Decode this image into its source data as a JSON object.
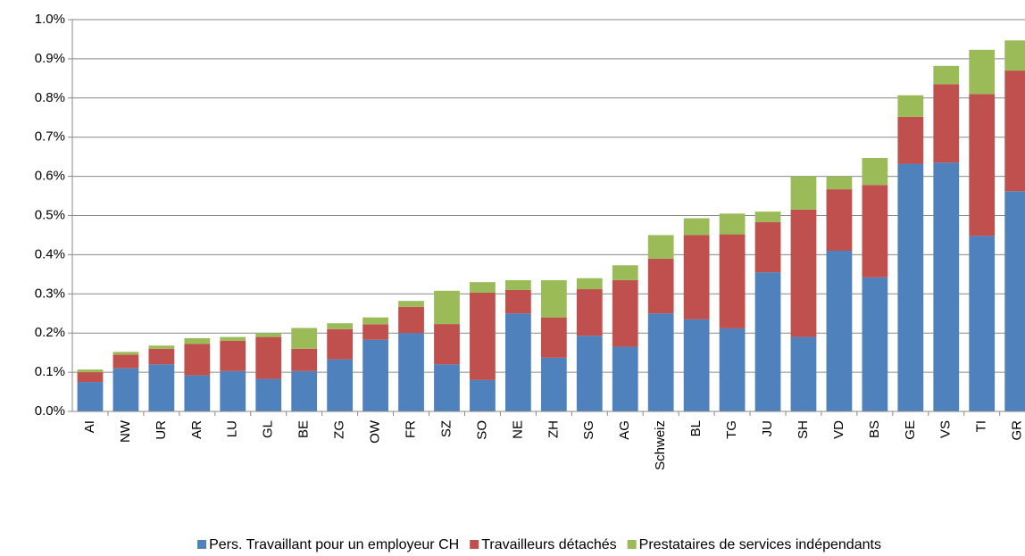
{
  "chart_data": {
    "type": "stacked-bar",
    "categories": [
      "AI",
      "NW",
      "UR",
      "AR",
      "LU",
      "GL",
      "BE",
      "ZG",
      "OW",
      "FR",
      "SZ",
      "SO",
      "NE",
      "ZH",
      "SG",
      "AG",
      "Schweiz",
      "BL",
      "TG",
      "JU",
      "SH",
      "VD",
      "BS",
      "GE",
      "VS",
      "TI",
      "GR"
    ],
    "series": [
      {
        "name": "Pers. Travaillant pour un employeur CH",
        "color": "#4f81bd",
        "values": [
          0.075,
          0.11,
          0.12,
          0.092,
          0.103,
          0.083,
          0.103,
          0.133,
          0.183,
          0.2,
          0.12,
          0.08,
          0.25,
          0.137,
          0.193,
          0.165,
          0.25,
          0.235,
          0.212,
          0.355,
          0.19,
          0.41,
          0.342,
          0.632,
          0.635,
          0.448,
          0.562
        ]
      },
      {
        "name": "Travailleurs détachés",
        "color": "#c0504d",
        "values": [
          0.025,
          0.035,
          0.04,
          0.08,
          0.077,
          0.107,
          0.057,
          0.077,
          0.039,
          0.067,
          0.103,
          0.223,
          0.06,
          0.103,
          0.119,
          0.17,
          0.14,
          0.215,
          0.24,
          0.128,
          0.325,
          0.157,
          0.236,
          0.12,
          0.2,
          0.362,
          0.308
        ]
      },
      {
        "name": "Prestataires de services indépendants",
        "color": "#9bbb59",
        "values": [
          0.007,
          0.007,
          0.008,
          0.015,
          0.01,
          0.01,
          0.053,
          0.015,
          0.018,
          0.015,
          0.085,
          0.027,
          0.025,
          0.095,
          0.028,
          0.038,
          0.06,
          0.043,
          0.053,
          0.027,
          0.085,
          0.033,
          0.069,
          0.055,
          0.047,
          0.113,
          0.077
        ]
      }
    ],
    "ylim": [
      0,
      1.0
    ],
    "yticks": [
      {
        "value": 0,
        "label": "0.0%"
      },
      {
        "value": 0.1,
        "label": "0.1%"
      },
      {
        "value": 0.2,
        "label": "0.2%"
      },
      {
        "value": 0.3,
        "label": "0.3%"
      },
      {
        "value": 0.4,
        "label": "0.4%"
      },
      {
        "value": 0.5,
        "label": "0.5%"
      },
      {
        "value": 0.6,
        "label": "0.6%"
      },
      {
        "value": 0.7,
        "label": "0.7%"
      },
      {
        "value": 0.8,
        "label": "0.8%"
      },
      {
        "value": 0.9,
        "label": "0.9%"
      },
      {
        "value": 1.0,
        "label": "1.0%"
      }
    ],
    "grid": true,
    "legend": "bottom"
  }
}
